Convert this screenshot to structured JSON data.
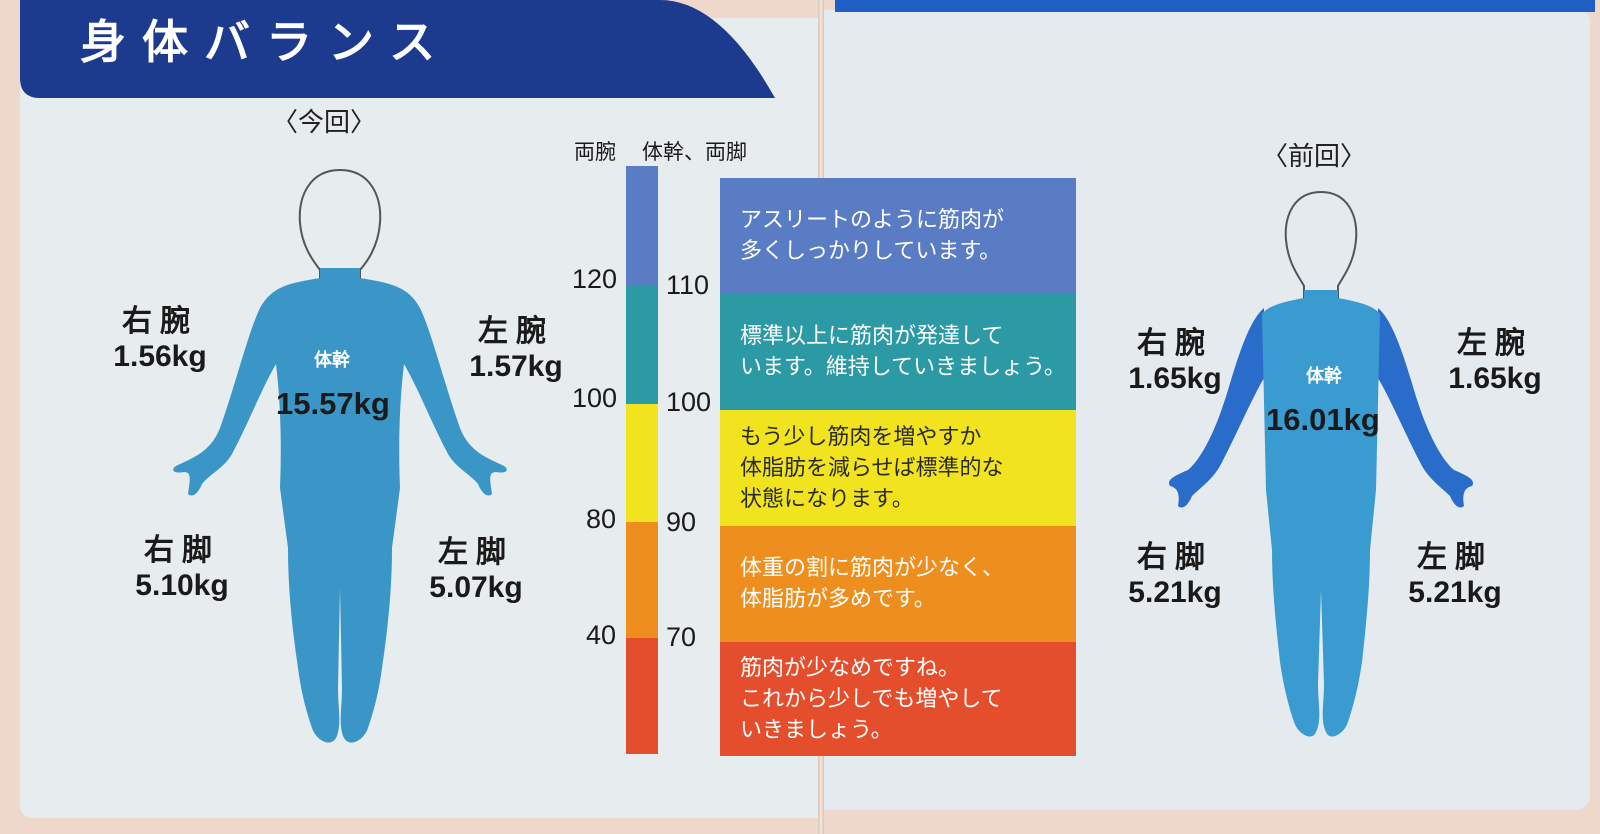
{
  "title": "身体バランス",
  "colors": {
    "banner": "#1c3b8f",
    "body_current": "#3a96c7",
    "body_previous_trunk": "#3a9bd0",
    "body_previous_arms": "#2a6cc9",
    "blue": "#5a7cc4",
    "teal": "#2c9aa4",
    "yellow": "#f1e41f",
    "orange": "#ee8e1e",
    "red": "#e54e2c"
  },
  "current": {
    "caption": "〈今回〉",
    "right_arm": {
      "name": "右腕",
      "value": "1.56kg"
    },
    "left_arm": {
      "name": "左腕",
      "value": "1.57kg"
    },
    "trunk": {
      "name": "体幹",
      "value": "15.57kg"
    },
    "right_leg": {
      "name": "右脚",
      "value": "5.10kg"
    },
    "left_leg": {
      "name": "左脚",
      "value": "5.07kg"
    }
  },
  "previous": {
    "caption": "〈前回〉",
    "right_arm": {
      "name": "右腕",
      "value": "1.65kg"
    },
    "left_arm": {
      "name": "左腕",
      "value": "1.65kg"
    },
    "trunk": {
      "name": "体幹",
      "value": "16.01kg"
    },
    "right_leg": {
      "name": "右脚",
      "value": "5.21kg"
    },
    "left_leg": {
      "name": "左脚",
      "value": "5.21kg"
    }
  },
  "scale": {
    "arms_header": "両腕",
    "trunk_legs_header": "体幹、両脚",
    "arms_ticks": [
      "120",
      "100",
      "80",
      "40"
    ],
    "trunk_legs_ticks": [
      "110",
      "100",
      "90",
      "70"
    ],
    "bands": [
      {
        "color": "blue",
        "text": "アスリートのように筋肉が\n多くしっかりしています。"
      },
      {
        "color": "teal",
        "text": "標準以上に筋肉が発達して\nいます。維持していきましょう。"
      },
      {
        "color": "yellow",
        "text": "もう少し筋肉を増やすか\n体脂肪を減らせば標準的な\n状態になります。"
      },
      {
        "color": "orange",
        "text": "体重の割に筋肉が少なく、\n体脂肪が多めです。"
      },
      {
        "color": "red",
        "text": "筋肉が少なめですね。\nこれから少しでも増やして\nいきましょう。"
      }
    ]
  }
}
